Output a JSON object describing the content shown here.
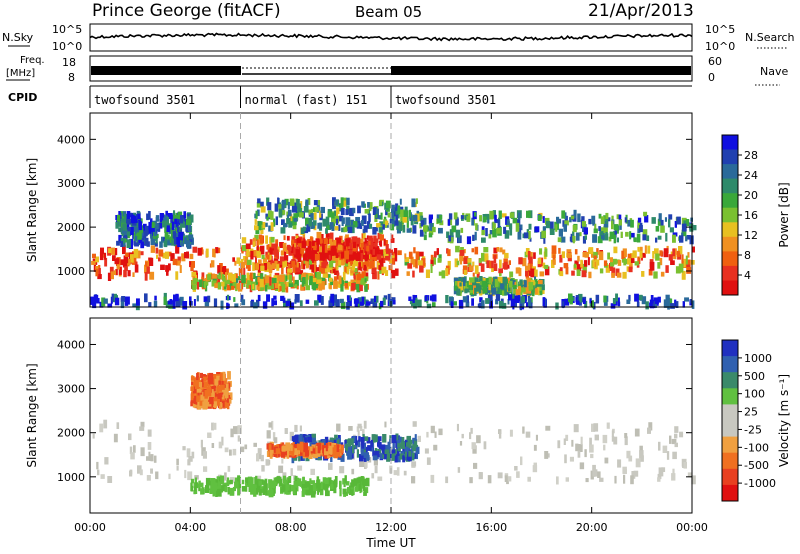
{
  "header": {
    "station": "Prince George (fitACF)",
    "beam": "Beam 05",
    "date": "21/Apr/2013"
  },
  "top_strips": {
    "nsky_label": "N.Sky",
    "nsky_ticks": [
      "10^5",
      "10^0"
    ],
    "nsearch_label": "N.Search",
    "nsearch_ticks": [
      "10^5",
      "10^0"
    ],
    "freq_label_1": "Freq.",
    "freq_label_2": "[MHz]",
    "freq_ticks": [
      "18",
      "8"
    ],
    "nave_label": "Nave",
    "nave_ticks": [
      "60",
      "0"
    ],
    "cpid_label": "CPID",
    "cpid_modes": [
      {
        "label": "twofsound 3501",
        "start_hour": 0,
        "end_hour": 6
      },
      {
        "label": "normal (fast) 151",
        "start_hour": 6,
        "end_hour": 12
      },
      {
        "label": "twofsound 3501",
        "start_hour": 12,
        "end_hour": 24
      }
    ]
  },
  "chart_data": [
    {
      "type": "heatmap",
      "title": "",
      "xlabel": "",
      "ylabel": "Slant Range [km]",
      "x_ticks": [
        "00:00",
        "04:00",
        "08:00",
        "12:00",
        "16:00",
        "20:00",
        "00:00"
      ],
      "y_ticks": [
        1000,
        2000,
        3000,
        4000
      ],
      "xlim": [
        0,
        24
      ],
      "ylim": [
        180,
        4600
      ],
      "colorbar": {
        "label": "Power [dB]",
        "ticks": [
          "4",
          "8",
          "12",
          "16",
          "20",
          "24",
          "28"
        ],
        "colors": [
          "#1010e0",
          "#2040b0",
          "#2a6a9a",
          "#2e8a6a",
          "#3aa83a",
          "#7ac030",
          "#e8c020",
          "#f09020",
          "#f06010",
          "#e83020",
          "#e01010"
        ]
      },
      "regions": [
        {
          "x": [
            0,
            12.5
          ],
          "range": [
            850,
            1500
          ],
          "level": 0.85
        },
        {
          "x": [
            1,
            4
          ],
          "range": [
            1600,
            2300
          ],
          "level": 0.2
        },
        {
          "x": [
            6,
            12
          ],
          "range": [
            1000,
            1800
          ],
          "level": 0.75
        },
        {
          "x": [
            8,
            11.5
          ],
          "range": [
            1300,
            1700
          ],
          "level": 0.95
        },
        {
          "x": [
            4,
            11
          ],
          "range": [
            600,
            900
          ],
          "level": 0.6
        },
        {
          "x": [
            12.5,
            24
          ],
          "range": [
            900,
            1500
          ],
          "level": 0.7
        },
        {
          "x": [
            13,
            24
          ],
          "range": [
            1700,
            2300
          ],
          "level": 0.3
        },
        {
          "x": [
            14.5,
            18
          ],
          "range": [
            500,
            800
          ],
          "level": 0.45
        },
        {
          "x": [
            6.5,
            13
          ],
          "range": [
            1900,
            2600
          ],
          "level": 0.35
        },
        {
          "x": [
            0,
            24
          ],
          "range": [
            200,
            400
          ],
          "level": 0.15
        }
      ]
    },
    {
      "type": "heatmap",
      "title": "",
      "xlabel": "Time UT",
      "ylabel": "Slant Range [km]",
      "x_ticks": [
        "00:00",
        "04:00",
        "08:00",
        "12:00",
        "16:00",
        "20:00",
        "00:00"
      ],
      "y_ticks": [
        1000,
        2000,
        3000,
        4000
      ],
      "xlim": [
        0,
        24
      ],
      "ylim": [
        180,
        4600
      ],
      "colorbar": {
        "label": "Velocity [m s⁻¹]",
        "ticks": [
          "1000",
          "500",
          "100",
          "25",
          "-25",
          "-100",
          "-500",
          "-1000"
        ],
        "colors": [
          "#2030c0",
          "#3060b0",
          "#3a8a6a",
          "#60c040",
          "#c8c8c0",
          "#c8c8c0",
          "#f0a040",
          "#f07020",
          "#e84020",
          "#e01010"
        ]
      },
      "regions": [
        {
          "x": [
            0,
            24
          ],
          "range": [
            900,
            2200
          ],
          "class": "ground"
        },
        {
          "x": [
            4,
            11
          ],
          "range": [
            600,
            950
          ],
          "class": "green"
        },
        {
          "x": [
            8,
            13
          ],
          "range": [
            1400,
            1900
          ],
          "class": "blue"
        },
        {
          "x": [
            7,
            10
          ],
          "range": [
            1500,
            1700
          ],
          "class": "orange"
        },
        {
          "x": [
            4,
            5.5
          ],
          "range": [
            2600,
            3300
          ],
          "class": "orange"
        }
      ]
    }
  ]
}
